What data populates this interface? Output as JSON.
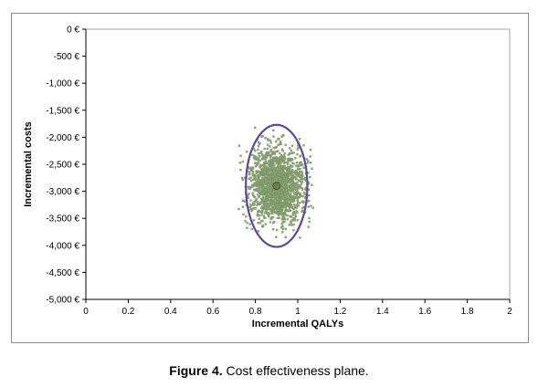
{
  "chart_data": {
    "type": "scatter",
    "xlabel": "Incremental QALYs",
    "ylabel": "Incremental costs",
    "xlim": [
      0,
      2
    ],
    "ylim": [
      -5000,
      0
    ],
    "x_ticks": [
      0,
      0.2,
      0.4,
      0.6,
      0.8,
      1,
      1.2,
      1.4,
      1.6,
      1.8,
      2
    ],
    "x_tick_labels": [
      "0",
      "0.2",
      "0.4",
      "0.6",
      "0.8",
      "1",
      "1.2",
      "1.4",
      "1.6",
      "1.8",
      "2"
    ],
    "y_ticks": [
      0,
      -500,
      -1000,
      -1500,
      -2000,
      -2500,
      -3000,
      -3500,
      -4000,
      -4500,
      -5000
    ],
    "y_tick_labels": [
      "0 €",
      "-500 €",
      "-1,000 €",
      "-1,500 €",
      "-2,000 €",
      "-2,500 €",
      "-3,000 €",
      "-3,500 €",
      "-4,000 €",
      "-4,500 €",
      "-5,000 €"
    ],
    "grid": false,
    "point_cloud": {
      "center": [
        0.9,
        -2900
      ],
      "sd": [
        0.065,
        330
      ],
      "x_range": [
        0.72,
        1.08
      ],
      "y_range": [
        -4550,
        -1350
      ],
      "count": 1800,
      "color": "#8fa878",
      "edge_color": "#6f8a5a"
    },
    "mean_point": {
      "x": 0.9,
      "y": -2900,
      "color": "#6b7f52"
    },
    "ellipse": {
      "center": [
        0.9,
        -2900
      ],
      "radius_x": 0.145,
      "radius_y": 1130,
      "color": "#5d4a9a"
    }
  },
  "caption": {
    "label": "Figure 4.",
    "text": " Cost effectiveness plane."
  }
}
